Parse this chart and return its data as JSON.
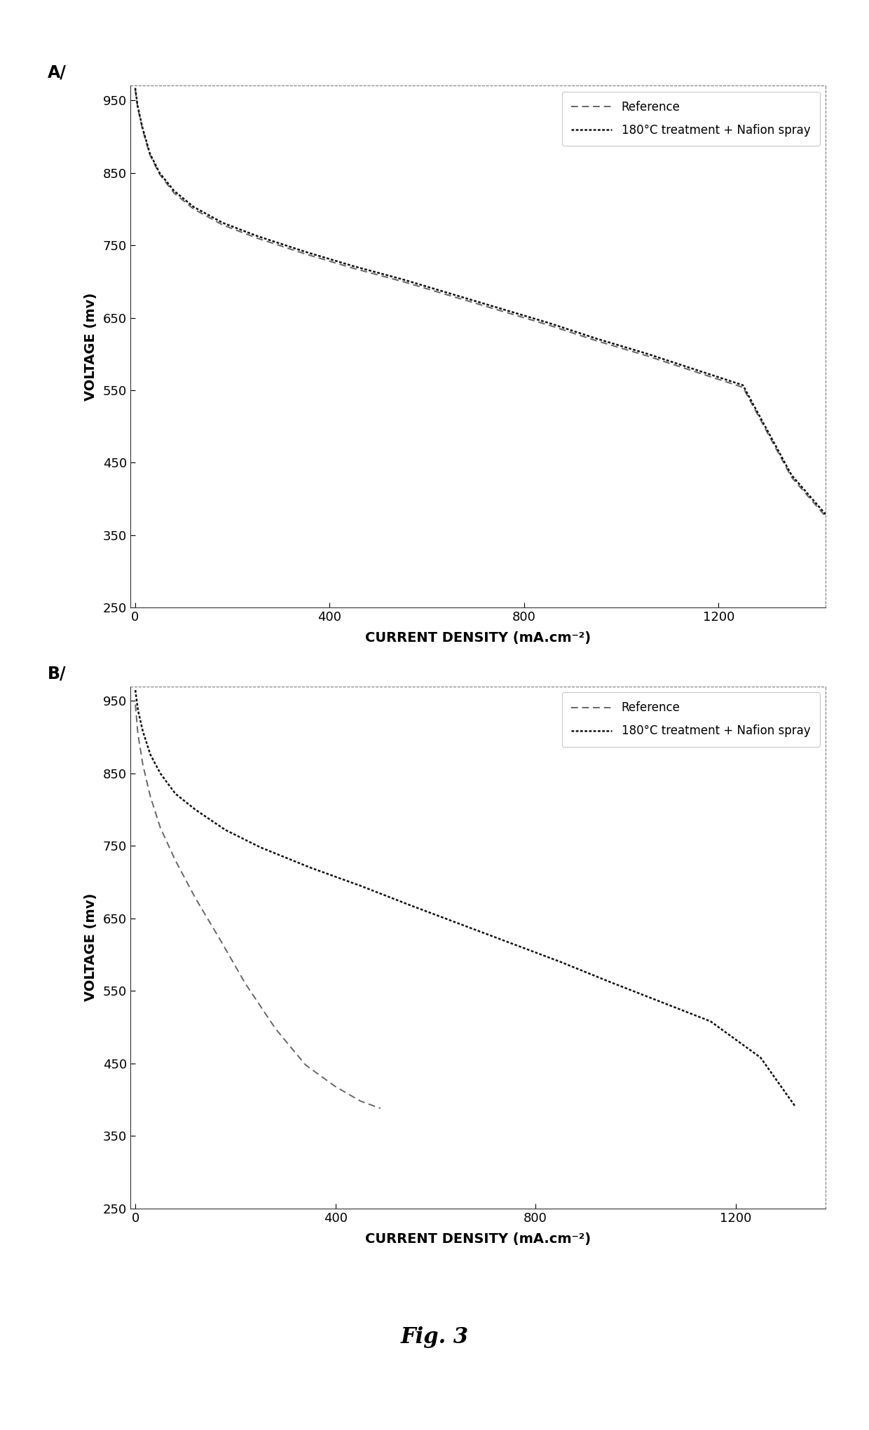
{
  "fig_label_A": "A/",
  "fig_label_B": "B/",
  "fig_label_fig3": "Fig. 3",
  "xlabel": "CURRENT DENSITY (mA.cm⁻²)",
  "ylabel": "VOLTAGE (mv)",
  "legend_ref": "Reference",
  "legend_treat": "180°C treatment + Nafion spray",
  "background_color": "#ffffff",
  "plot_bg_color": "#ffffff",
  "ylim": [
    250,
    970
  ],
  "yticks": [
    250,
    350,
    450,
    550,
    650,
    750,
    850,
    950
  ],
  "panel_A": {
    "xlim": [
      -10,
      1420
    ],
    "xticks": [
      0,
      400,
      800,
      1200
    ],
    "ref_x": [
      0,
      5,
      15,
      30,
      50,
      80,
      120,
      180,
      250,
      350,
      450,
      550,
      650,
      750,
      850,
      950,
      1050,
      1150,
      1250,
      1350,
      1420
    ],
    "ref_y": [
      965,
      940,
      910,
      875,
      848,
      822,
      800,
      778,
      760,
      738,
      718,
      700,
      680,
      660,
      640,
      618,
      598,
      576,
      554,
      430,
      376
    ],
    "treat_x": [
      0,
      5,
      15,
      30,
      50,
      80,
      120,
      180,
      250,
      350,
      450,
      550,
      650,
      750,
      850,
      950,
      1050,
      1150,
      1250,
      1350,
      1420
    ],
    "treat_y": [
      967,
      942,
      912,
      877,
      850,
      825,
      803,
      781,
      763,
      741,
      721,
      703,
      683,
      663,
      643,
      621,
      601,
      579,
      557,
      433,
      379
    ]
  },
  "panel_B": {
    "xlim": [
      -10,
      1380
    ],
    "xticks": [
      0,
      400,
      800,
      1200
    ],
    "ref_x": [
      0,
      5,
      15,
      30,
      50,
      80,
      120,
      170,
      220,
      280,
      340,
      400,
      450,
      490
    ],
    "ref_y": [
      945,
      905,
      862,
      818,
      775,
      730,
      678,
      620,
      560,
      498,
      448,
      418,
      398,
      388
    ],
    "treat_x": [
      0,
      5,
      15,
      30,
      50,
      80,
      120,
      180,
      250,
      350,
      450,
      550,
      650,
      750,
      850,
      950,
      1050,
      1150,
      1250,
      1320
    ],
    "treat_y": [
      965,
      938,
      908,
      876,
      850,
      822,
      800,
      772,
      748,
      720,
      695,
      668,
      642,
      616,
      590,
      562,
      535,
      508,
      458,
      390
    ]
  }
}
